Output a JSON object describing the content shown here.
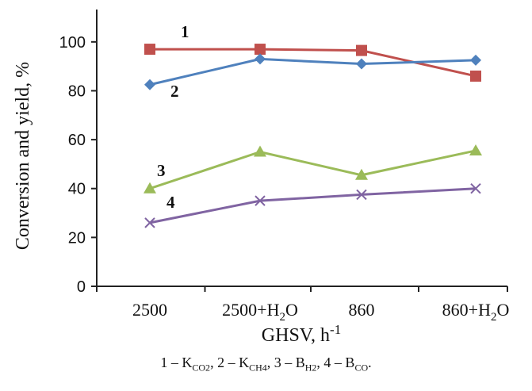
{
  "chart_data": {
    "type": "line",
    "xlabel": "GHSV, h-1",
    "xlabel_main": "GHSV, h",
    "xlabel_sup": "-1",
    "ylabel": "Conversion and yield, %",
    "ylim": [
      0,
      110
    ],
    "yticks": [
      0,
      20,
      40,
      60,
      80,
      100
    ],
    "categories": [
      "2500",
      "2500+H2O",
      "860",
      "860+H2O"
    ],
    "category_parts": [
      [
        "2500",
        "",
        ""
      ],
      [
        "2500+H",
        "2",
        "O"
      ],
      [
        "860",
        "",
        ""
      ],
      [
        "860+H",
        "2",
        "O"
      ]
    ],
    "grid": false,
    "series": [
      {
        "name": "1",
        "values": [
          97,
          97,
          96.5,
          86
        ],
        "color": "#c0504d",
        "marker": "square"
      },
      {
        "name": "2",
        "values": [
          82.5,
          93,
          91,
          92.5
        ],
        "color": "#4f81bd",
        "marker": "diamond"
      },
      {
        "name": "3",
        "values": [
          40,
          55,
          45.5,
          55.5
        ],
        "color": "#9bbb59",
        "marker": "triangle"
      },
      {
        "name": "4",
        "values": [
          26,
          35,
          37.5,
          40
        ],
        "color": "#8064a2",
        "marker": "x"
      }
    ]
  },
  "caption": {
    "items": [
      {
        "prefix": "1 – K",
        "sub": "CO2",
        "suffix": ", "
      },
      {
        "prefix": "2 – K",
        "sub": "CH4",
        "suffix": ", "
      },
      {
        "prefix": "3 – B",
        "sub": "H2",
        "suffix": ", "
      },
      {
        "prefix": "4 – B",
        "sub": "CO",
        "suffix": "."
      }
    ]
  }
}
